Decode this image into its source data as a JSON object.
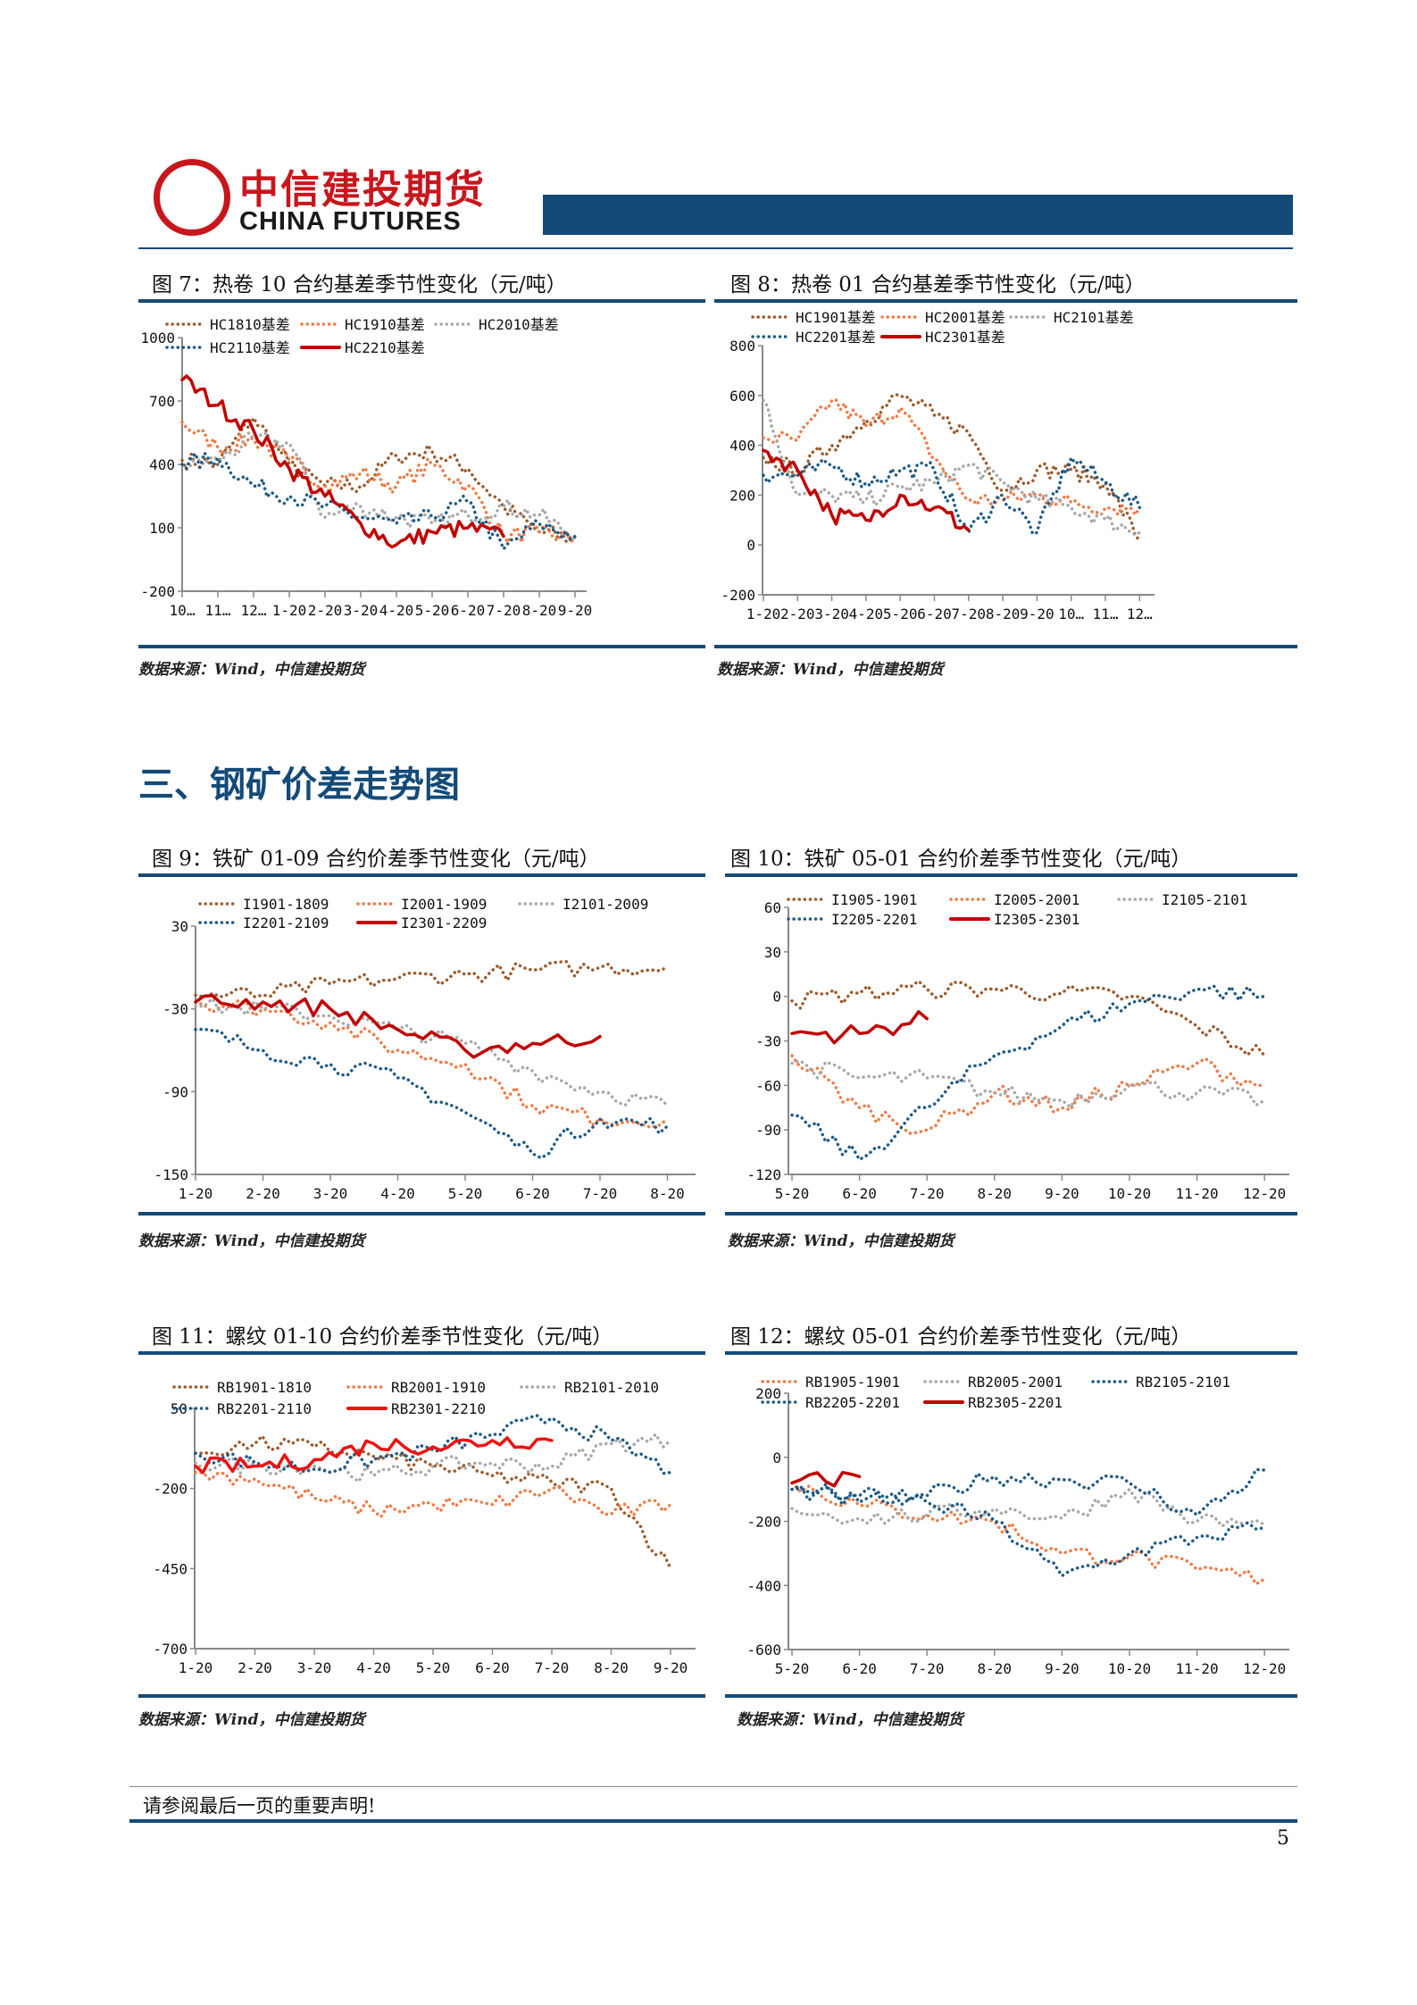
{
  "header": {
    "logo_cn": "中信建投期货",
    "logo_en": "CHINA FUTURES"
  },
  "section_title": "三、钢矿价差走势图",
  "footer": {
    "disclaimer": "请参阅最后一页的重要声明!",
    "page_number": "5"
  },
  "colors": {
    "brown": "#9c5a2c",
    "orange": "#f07a45",
    "gray": "#a8a8a8",
    "blue": "#1d5a86",
    "red": "#c00000",
    "bright_red": "#ee1111",
    "rule": "#134a78"
  },
  "figures": [
    {
      "title": "图 7：热卷 10 合约基差季节性变化（元/吨）",
      "source": "数据来源：Wind，中信建投期货"
    },
    {
      "title": "图 8：热卷 01 合约基差季节性变化（元/吨）",
      "source": "数据来源：Wind，中信建投期货"
    },
    {
      "title": "图 9：铁矿 01-09 合约价差季节性变化（元/吨）",
      "source": "数据来源：Wind，中信建投期货"
    },
    {
      "title": "图 10：铁矿 05-01 合约价差季节性变化（元/吨）",
      "source": "数据来源：Wind，中信建投期货"
    },
    {
      "title": "图 11：螺纹 01-10 合约价差季节性变化（元/吨）",
      "source": "数据来源：Wind，中信建投期货"
    },
    {
      "title": "图 12：螺纹 05-01 合约价差季节性变化（元/吨）",
      "source": "数据来源：Wind，中信建投期货"
    }
  ],
  "chart_data": [
    {
      "type": "line",
      "ylim": [
        -200,
        1000
      ],
      "yticks": [
        "1000",
        "700",
        "400",
        "100",
        "-200"
      ],
      "ytick_values": [
        1000,
        700,
        400,
        100,
        -200
      ],
      "categories": [
        "10…",
        "11…",
        "12…",
        "1-20",
        "2-20",
        "3-20",
        "4-20",
        "5-20",
        "6-20",
        "7-20",
        "8-20",
        "9-20"
      ],
      "grid": false,
      "legend": "top",
      "series": [
        {
          "name": "HC1810基差",
          "style": "dotted",
          "color": "brown",
          "values": [
            420,
            400,
            620,
            400,
            300,
            300,
            440,
            460,
            380,
            200,
            80,
            50
          ]
        },
        {
          "name": "HC1910基差",
          "style": "dotted",
          "color": "orange",
          "values": [
            600,
            480,
            520,
            420,
            300,
            360,
            300,
            400,
            300,
            60,
            80,
            40
          ]
        },
        {
          "name": "HC2010基差",
          "style": "dotted",
          "color": "gray",
          "values": [
            400,
            420,
            520,
            500,
            150,
            200,
            150,
            120,
            160,
            200,
            160,
            60
          ]
        },
        {
          "name": "HC2110基差",
          "style": "dotted",
          "color": "blue",
          "values": [
            400,
            430,
            300,
            250,
            200,
            150,
            120,
            150,
            220,
            0,
            120,
            60
          ]
        },
        {
          "name": "HC2210基差",
          "style": "solid",
          "color": "red",
          "values": [
            800,
            680,
            560,
            380,
            250,
            120,
            20,
            80,
            100,
            60,
            null,
            null
          ]
        }
      ]
    },
    {
      "type": "line",
      "ylim": [
        -200,
        800
      ],
      "yticks": [
        "800",
        "600",
        "400",
        "200",
        "0",
        "-200"
      ],
      "ytick_values": [
        800,
        600,
        400,
        200,
        0,
        -200
      ],
      "categories": [
        "1-20",
        "2-20",
        "3-20",
        "4-20",
        "5-20",
        "6-20",
        "7-20",
        "8-20",
        "9-20",
        "10…",
        "11…",
        "12…"
      ],
      "grid": false,
      "legend": "top",
      "series": [
        {
          "name": "HC1901基差",
          "style": "dotted",
          "color": "brown",
          "values": [
            350,
            300,
            400,
            500,
            600,
            520,
            450,
            220,
            300,
            300,
            250,
            20
          ]
        },
        {
          "name": "HC2001基差",
          "style": "dotted",
          "color": "orange",
          "values": [
            430,
            420,
            580,
            480,
            550,
            350,
            180,
            180,
            200,
            170,
            150,
            150
          ]
        },
        {
          "name": "HC2101基差",
          "style": "dotted",
          "color": "gray",
          "values": [
            580,
            200,
            200,
            180,
            230,
            250,
            320,
            250,
            180,
            150,
            100,
            50
          ]
        },
        {
          "name": "HC2201基差",
          "style": "dotted",
          "color": "blue",
          "values": [
            280,
            280,
            320,
            250,
            300,
            300,
            50,
            200,
            50,
            350,
            250,
            150
          ]
        },
        {
          "name": "HC2301基差",
          "style": "solid",
          "color": "red",
          "values": [
            380,
            300,
            120,
            100,
            200,
            150,
            60,
            null,
            null,
            null,
            null,
            null
          ]
        }
      ]
    },
    {
      "type": "line",
      "ylim": [
        -150,
        30
      ],
      "yticks": [
        "30",
        "-30",
        "-90",
        "-150"
      ],
      "ytick_values": [
        30,
        -30,
        -90,
        -150
      ],
      "categories": [
        "1-20",
        "2-20",
        "3-20",
        "4-20",
        "5-20",
        "6-20",
        "7-20",
        "8-20"
      ],
      "grid": false,
      "legend": "top",
      "series": [
        {
          "name": "I1901-1809",
          "style": "dotted",
          "color": "brown",
          "values": [
            -20,
            -20,
            -12,
            -8,
            -5,
            -2,
            0,
            0
          ]
        },
        {
          "name": "I2001-1909",
          "style": "dotted",
          "color": "orange",
          "values": [
            -25,
            -30,
            -40,
            -60,
            -70,
            -100,
            -110,
            -110
          ]
        },
        {
          "name": "I2101-2009",
          "style": "dotted",
          "color": "gray",
          "values": [
            -28,
            -30,
            -35,
            -45,
            -55,
            -75,
            -90,
            -100
          ]
        },
        {
          "name": "I2201-2109",
          "style": "dotted",
          "color": "blue",
          "values": [
            -45,
            -60,
            -70,
            -80,
            -105,
            -135,
            -110,
            -115
          ]
        },
        {
          "name": "I2301-2209",
          "style": "solid",
          "color": "red",
          "values": [
            -25,
            -25,
            -30,
            -45,
            -60,
            -55,
            -50,
            null
          ]
        }
      ]
    },
    {
      "type": "line",
      "ylim": [
        -120,
        60
      ],
      "yticks": [
        "60",
        "30",
        "0",
        "-30",
        "-60",
        "-90",
        "-120"
      ],
      "ytick_values": [
        60,
        30,
        0,
        -30,
        -60,
        -90,
        -120
      ],
      "categories": [
        "5-20",
        "6-20",
        "7-20",
        "8-20",
        "9-20",
        "10-20",
        "11-20",
        "12-20"
      ],
      "grid": false,
      "legend": "top",
      "series": [
        {
          "name": "I1905-1901",
          "style": "dotted",
          "color": "brown",
          "values": [
            -3,
            2,
            5,
            5,
            2,
            0,
            -20,
            -40
          ]
        },
        {
          "name": "I2005-2001",
          "style": "dotted",
          "color": "orange",
          "values": [
            -40,
            -75,
            -90,
            -65,
            -75,
            -60,
            -45,
            -60
          ]
        },
        {
          "name": "I2105-2101",
          "style": "dotted",
          "color": "gray",
          "values": [
            -45,
            -55,
            -55,
            -65,
            -70,
            -60,
            -65,
            -70
          ]
        },
        {
          "name": "I2205-2201",
          "style": "dotted",
          "color": "blue",
          "values": [
            -80,
            -110,
            -75,
            -40,
            -20,
            -5,
            5,
            0
          ]
        },
        {
          "name": "I2305-2301",
          "style": "solid",
          "color": "red",
          "values": [
            -25,
            -25,
            -15,
            null,
            null,
            null,
            null,
            null
          ]
        }
      ]
    },
    {
      "type": "line",
      "ylim": [
        -700,
        50
      ],
      "yticks": [
        "50",
        "-200",
        "-450",
        "-700"
      ],
      "ytick_values": [
        50,
        -200,
        -450,
        -700
      ],
      "categories": [
        "1-20",
        "2-20",
        "3-20",
        "4-20",
        "5-20",
        "6-20",
        "7-20",
        "8-20",
        "9-20"
      ],
      "grid": false,
      "legend": "top",
      "series": [
        {
          "name": "RB1901-1810",
          "style": "dotted",
          "color": "brown",
          "values": [
            -90,
            -60,
            -70,
            -100,
            -130,
            -160,
            -180,
            -200,
            -450
          ]
        },
        {
          "name": "RB2001-1910",
          "style": "dotted",
          "color": "orange",
          "values": [
            -150,
            -170,
            -230,
            -270,
            -250,
            -250,
            -200,
            -280,
            -250
          ]
        },
        {
          "name": "RB2101-2010",
          "style": "dotted",
          "color": "gray",
          "values": [
            -120,
            -130,
            -130,
            -160,
            -130,
            -120,
            -130,
            -60,
            -50
          ]
        },
        {
          "name": "RB2201-2110",
          "style": "dotted",
          "color": "blue",
          "values": [
            -90,
            -120,
            -140,
            -110,
            -80,
            -30,
            20,
            -50,
            -150
          ]
        },
        {
          "name": "RB2301-2210",
          "style": "solid",
          "color": "bright_red",
          "values": [
            -130,
            -130,
            -110,
            -60,
            -70,
            -50,
            -50,
            null,
            null
          ]
        }
      ]
    },
    {
      "type": "line",
      "ylim": [
        -600,
        200
      ],
      "yticks": [
        "200",
        "0",
        "-200",
        "-400",
        "-600"
      ],
      "ytick_values": [
        200,
        0,
        -200,
        -400,
        -600
      ],
      "categories": [
        "5-20",
        "6-20",
        "7-20",
        "8-20",
        "9-20",
        "10-20",
        "11-20",
        "12-20"
      ],
      "grid": false,
      "legend": "top",
      "series": [
        {
          "name": "RB1905-1901",
          "style": "dotted",
          "color": "orange",
          "values": [
            -80,
            -150,
            -180,
            -200,
            -300,
            -310,
            -350,
            -380
          ]
        },
        {
          "name": "RB2005-2001",
          "style": "dotted",
          "color": "gray",
          "values": [
            -160,
            -190,
            -180,
            -160,
            -190,
            -100,
            -200,
            -210
          ]
        },
        {
          "name": "RB2105-2101",
          "style": "dotted",
          "color": "blue",
          "values": [
            -100,
            -140,
            -120,
            -60,
            -70,
            -80,
            -180,
            -40
          ]
        },
        {
          "name": "RB2205-2201",
          "style": "dotted",
          "color": "blue",
          "values": [
            -100,
            -120,
            -140,
            -200,
            -370,
            -300,
            -250,
            -220
          ]
        },
        {
          "name": "RB2305-2201",
          "style": "solid",
          "color": "red",
          "values": [
            -80,
            -60,
            null,
            null,
            null,
            null,
            null,
            null
          ]
        }
      ]
    }
  ]
}
